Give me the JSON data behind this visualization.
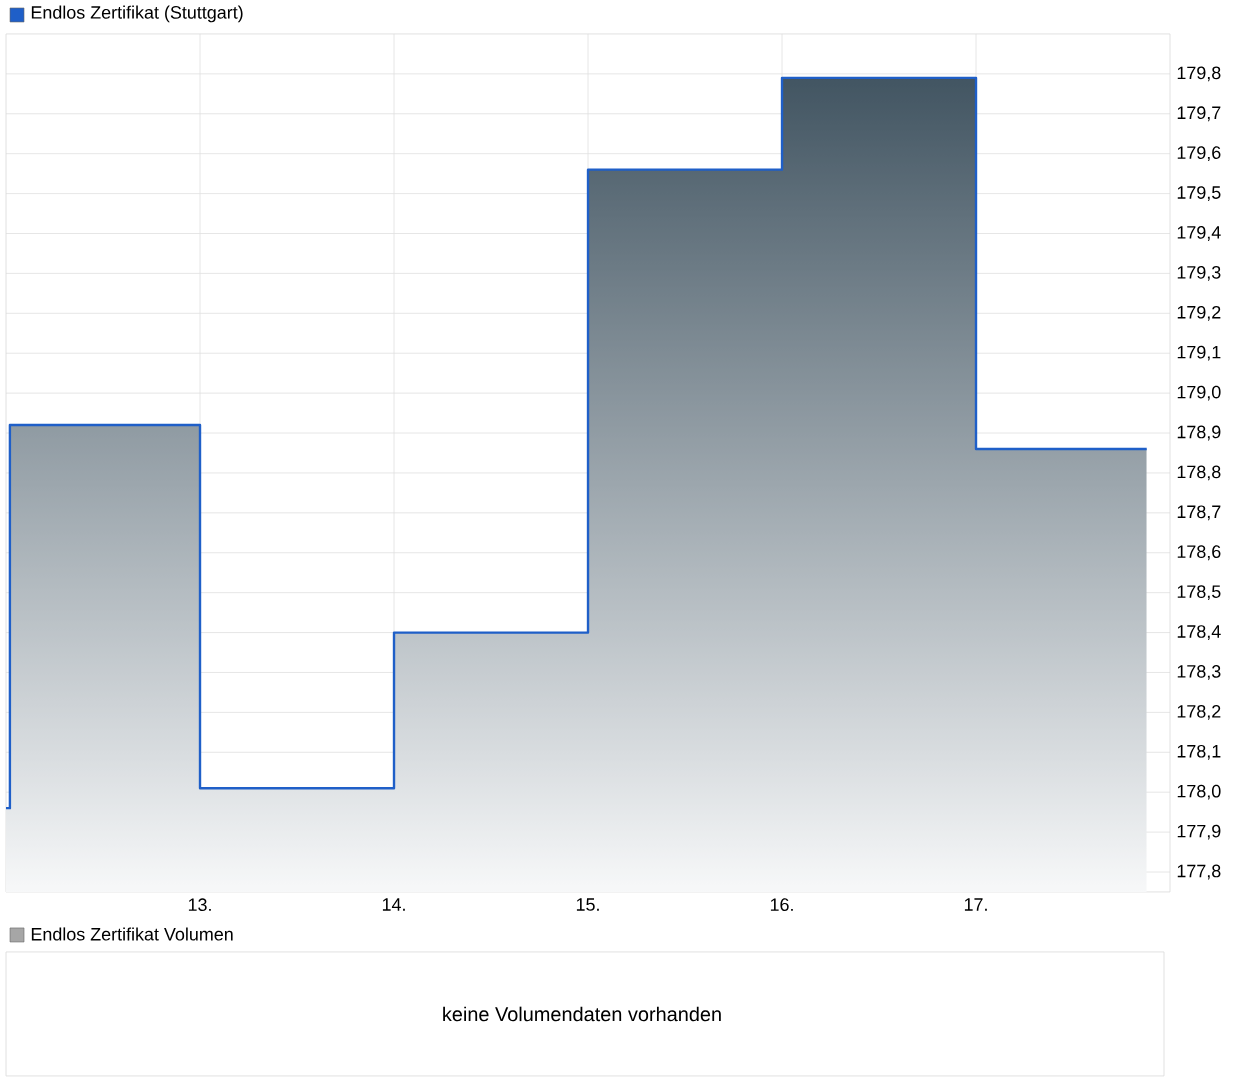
{
  "chart_data": [
    {
      "type": "step",
      "x": [
        12.0,
        12.02,
        13.0,
        14.0,
        15.0,
        16.0,
        17.0,
        17.88
      ],
      "series": [
        {
          "name": "Endlos Zertifikat (Stuttgart)",
          "color": "#1f5fc8",
          "values": [
            177.96,
            178.92,
            178.01,
            178.4,
            179.56,
            179.79,
            178.86,
            178.86
          ]
        }
      ],
      "xlim": [
        12,
        18
      ],
      "xticks": [
        {
          "value": 13,
          "label": "13."
        },
        {
          "value": 14,
          "label": "14."
        },
        {
          "value": 15,
          "label": "15."
        },
        {
          "value": 16,
          "label": "16."
        },
        {
          "value": 17,
          "label": "17."
        }
      ],
      "ylim": [
        177.75,
        179.9
      ],
      "yticks": [
        {
          "value": 177.8,
          "label": "177,8"
        },
        {
          "value": 177.9,
          "label": "177,9"
        },
        {
          "value": 178.0,
          "label": "178,0"
        },
        {
          "value": 178.1,
          "label": "178,1"
        },
        {
          "value": 178.2,
          "label": "178,2"
        },
        {
          "value": 178.3,
          "label": "178,3"
        },
        {
          "value": 178.4,
          "label": "178,4"
        },
        {
          "value": 178.5,
          "label": "178,5"
        },
        {
          "value": 178.6,
          "label": "178,6"
        },
        {
          "value": 178.7,
          "label": "178,7"
        },
        {
          "value": 178.8,
          "label": "178,8"
        },
        {
          "value": 178.9,
          "label": "178,9"
        },
        {
          "value": 179.0,
          "label": "179,0"
        },
        {
          "value": 179.1,
          "label": "179,1"
        },
        {
          "value": 179.2,
          "label": "179,2"
        },
        {
          "value": 179.3,
          "label": "179,3"
        },
        {
          "value": 179.4,
          "label": "179,4"
        },
        {
          "value": 179.5,
          "label": "179,5"
        },
        {
          "value": 179.6,
          "label": "179,6"
        },
        {
          "value": 179.7,
          "label": "179,7"
        },
        {
          "value": 179.8,
          "label": "179,8"
        }
      ],
      "grid": true,
      "legend": "top left"
    },
    {
      "type": "other",
      "title": "Endlos Zertifikat Volumen",
      "annotations": [
        "keine Volumendaten vorhanden"
      ]
    }
  ]
}
